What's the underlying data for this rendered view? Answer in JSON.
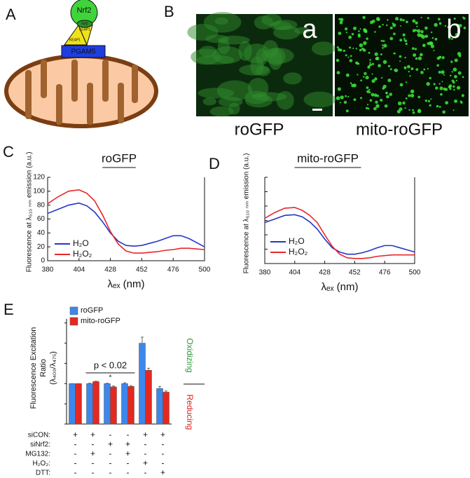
{
  "panel_labels": [
    "A",
    "B",
    "C",
    "D",
    "E"
  ],
  "diagram": {
    "nrf2": "Nrf2",
    "nrf2_small": "Nrf2",
    "keap1": [
      "KEAP1",
      "KEAP1"
    ],
    "pgam5": "PGAM5"
  },
  "images": {
    "labels": [
      "a",
      "b"
    ],
    "captions": [
      "roGFP",
      "mito-roGFP"
    ]
  },
  "chart_data": [
    {
      "type": "line",
      "title": "roGFP",
      "xlabel": "λₑₓ (nm)",
      "ylabel": "Fluorescence at λ₅₁₀ ₙₘ emission (a.u.)",
      "x": [
        380,
        388,
        396,
        404,
        410,
        416,
        422,
        428,
        434,
        440,
        446,
        452,
        458,
        464,
        470,
        476,
        482,
        488,
        494,
        500
      ],
      "series": [
        {
          "name": "H₂O",
          "color": "#2436c8",
          "values": [
            68,
            74,
            80,
            83,
            79,
            70,
            56,
            40,
            28,
            22,
            21,
            22,
            25,
            28,
            32,
            36,
            36,
            32,
            26,
            20
          ]
        },
        {
          "name": "H₂O₂",
          "color": "#e8262c",
          "values": [
            82,
            92,
            100,
            102,
            97,
            86,
            66,
            42,
            24,
            14,
            11,
            11,
            12,
            13,
            15,
            16,
            18,
            18,
            17,
            16
          ]
        }
      ],
      "xlim": [
        380,
        500
      ],
      "xticks": [
        380,
        404,
        428,
        452,
        476,
        500
      ],
      "ylim": [
        0,
        120
      ],
      "yticks": [
        0,
        20,
        40,
        60,
        80,
        100,
        120
      ]
    },
    {
      "type": "line",
      "title": "mito-roGFP",
      "xlabel": "λₑₓ (nm)",
      "ylabel": "Fluorescence at λ₅₁₀ ₙₘ emission (a.u.)",
      "x": [
        380,
        388,
        396,
        404,
        410,
        416,
        422,
        428,
        434,
        440,
        446,
        452,
        458,
        464,
        470,
        476,
        482,
        488,
        494,
        500
      ],
      "series": [
        {
          "name": "H₂O",
          "color": "#2436c8",
          "values": [
            57,
            62,
            67,
            68,
            65,
            58,
            48,
            34,
            22,
            16,
            13,
            13,
            15,
            18,
            22,
            25,
            25,
            22,
            19,
            16
          ]
        },
        {
          "name": "H₂O₂",
          "color": "#e8262c",
          "values": [
            63,
            71,
            77,
            78,
            74,
            67,
            57,
            40,
            24,
            13,
            8,
            7,
            7,
            8,
            10,
            11,
            12,
            12,
            12,
            12
          ]
        }
      ],
      "xlim": [
        380,
        500
      ],
      "xticks": [
        380,
        404,
        428,
        452,
        476,
        500
      ],
      "ylim": [
        0,
        120
      ],
      "yticks": [
        0,
        20,
        40,
        60,
        80,
        100,
        120
      ]
    },
    {
      "type": "bar",
      "ylabel": [
        "Fluorescence Excitation",
        "Ratio",
        "(λ₄₀₀/λ₄₇₅)"
      ],
      "categories": [
        null,
        null,
        null,
        null,
        null,
        null
      ],
      "series": [
        {
          "name": "roGFP",
          "color": "#3d87ec",
          "values": [
            1.0,
            1.0,
            1.0,
            1.0,
            2.0,
            0.88
          ],
          "errors": [
            0,
            0.01,
            0.01,
            0.02,
            0.15,
            0.05
          ]
        },
        {
          "name": "mito-roGFP",
          "color": "#e5281f",
          "values": [
            1.0,
            1.05,
            0.92,
            0.93,
            1.33,
            0.79
          ],
          "errors": [
            0,
            0.01,
            0.02,
            0.02,
            0.05,
            0.03
          ]
        }
      ],
      "ylim": [
        0,
        2.6
      ],
      "yticks": [
        0,
        0.5,
        1,
        1.5,
        2,
        2.5
      ],
      "annotation": "p < 0.02",
      "significance": "*",
      "side_labels": [
        "Oxidizing",
        "Reducing"
      ],
      "conditions": {
        "labels": [
          "siCON:",
          "siNrf2:",
          "MG132:",
          "H₂O₂:",
          "DTT:"
        ],
        "rows": [
          [
            "+",
            "+",
            "-",
            "-",
            "+",
            "+"
          ],
          [
            "-",
            "-",
            "+",
            "+",
            "-",
            "-"
          ],
          [
            "-",
            "+",
            "-",
            "+",
            "-",
            "-"
          ],
          [
            "-",
            "-",
            "-",
            "-",
            "+",
            "-"
          ],
          [
            "-",
            "-",
            "-",
            "-",
            "-",
            "+"
          ]
        ]
      }
    }
  ]
}
